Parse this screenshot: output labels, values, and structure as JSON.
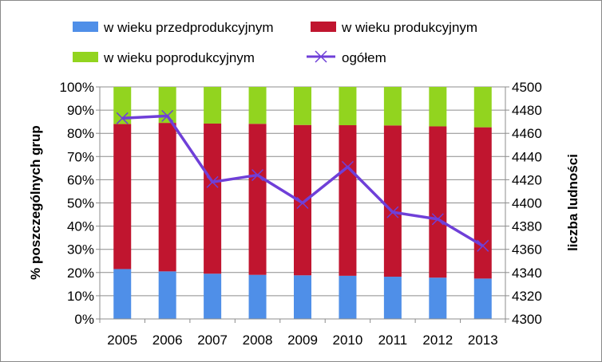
{
  "chart_data": {
    "type": "bar",
    "stacked": true,
    "categories": [
      "2005",
      "2006",
      "2007",
      "2008",
      "2009",
      "2010",
      "2011",
      "2012",
      "2013"
    ],
    "series": [
      {
        "name": "w wieku przedprodukcyjnym",
        "color": "#4f8fe8",
        "values": [
          0.215,
          0.205,
          0.195,
          0.19,
          0.188,
          0.186,
          0.182,
          0.178,
          0.174
        ]
      },
      {
        "name": "w wieku produkcyjnym",
        "color": "#c0152f",
        "values": [
          0.625,
          0.64,
          0.647,
          0.651,
          0.648,
          0.649,
          0.652,
          0.652,
          0.652
        ]
      },
      {
        "name": "w wieku poprodukcyjnym",
        "color": "#92d41f",
        "values": [
          0.16,
          0.155,
          0.158,
          0.159,
          0.164,
          0.165,
          0.166,
          0.17,
          0.174
        ]
      }
    ],
    "line_series": {
      "name": "ogółem",
      "color": "#6f3fd8",
      "values": [
        4473,
        4475,
        4418,
        4424,
        4400,
        4431,
        4392,
        4386,
        4363
      ]
    },
    "ylabel": "% poszczególnych grup",
    "y2label": "liczba ludności",
    "ylim": [
      0,
      1
    ],
    "y2lim": [
      4300,
      4500
    ],
    "yticks": [
      "0%",
      "10%",
      "20%",
      "30%",
      "40%",
      "50%",
      "60%",
      "70%",
      "80%",
      "90%",
      "100%"
    ],
    "y2ticks": [
      "4300",
      "4320",
      "4340",
      "4360",
      "4380",
      "4400",
      "4420",
      "4440",
      "4460",
      "4480",
      "4500"
    ],
    "grid": true,
    "legend_position": "top"
  }
}
